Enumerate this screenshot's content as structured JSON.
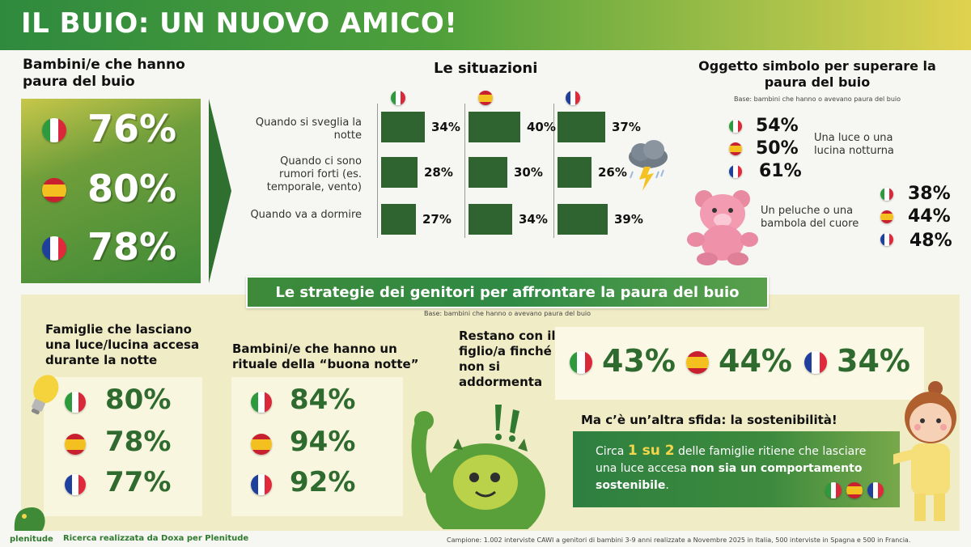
{
  "header": {
    "title": "IL BUIO: UN NUOVO AMICO!"
  },
  "fear": {
    "title": "Bambini/e che hanno paura del buio",
    "rows": [
      {
        "country": "Italia",
        "value": "76%"
      },
      {
        "country": "Spagna",
        "value": "80%"
      },
      {
        "country": "Francia",
        "value": "78%"
      }
    ]
  },
  "situations": {
    "title": "Le situazioni",
    "labels": [
      "Quando si sveglia la notte",
      "Quando ci sono rumori forti (es. temporale, vento)",
      "Quando va a dormire"
    ],
    "value_labels": {
      "it": [
        "34%",
        "28%",
        "27%"
      ],
      "es": [
        "40%",
        "30%",
        "34%"
      ],
      "fr": [
        "37%",
        "26%",
        "39%"
      ]
    }
  },
  "symbol": {
    "title": "Oggetto simbolo per superare la paura del buio",
    "base": "Base: bambini che hanno o avevano paura del buio",
    "light": {
      "label": "Una luce o una lucina notturna",
      "values": [
        "54%",
        "50%",
        "61%"
      ]
    },
    "plush": {
      "label": "Un peluche o una bambola del cuore",
      "values": [
        "38%",
        "44%",
        "48%"
      ]
    }
  },
  "strategies": {
    "banner": "Le strategie dei genitori per affrontare la paura del buio",
    "base": "Base: bambini che hanno o avevano paura del buio",
    "light_on": {
      "title": "Famiglie che lasciano una luce/lucina accesa durante la notte",
      "values": [
        "80%",
        "78%",
        "77%"
      ]
    },
    "ritual": {
      "title": "Bambini/e che hanno un rituale della “buona notte”",
      "values": [
        "84%",
        "94%",
        "92%"
      ]
    },
    "stay": {
      "title": "Restano con il figlio/a finché non si addormenta",
      "values": [
        "43%",
        "44%",
        "34%"
      ]
    }
  },
  "sustainability": {
    "title": "Ma c’è un’altra sfida: la sostenibilità!",
    "text_1": "Circa",
    "highlight": "1 su 2",
    "text_2": "delle famiglie ritiene che lasciare una luce accesa",
    "bold": "non sia un comportamento sostenibile",
    "end": "."
  },
  "footer": {
    "brand": "plenitude",
    "left": "Ricerca realizzata da Doxa per Plenitude",
    "right": "Campione: 1.002 interviste CAWI a genitori di bambini 3-9 anni realizzate a Novembre 2025 in Italia, 500 interviste in Spagna e 500 in Francia."
  },
  "colors": {
    "green_dark": "#2f6430",
    "green": "#3f8a37",
    "yellow": "#f3d64a"
  },
  "chart_data": {
    "type": "bar",
    "title": "Le situazioni",
    "categories": [
      "Quando si sveglia la notte",
      "Quando ci sono rumori forti (es. temporale, vento)",
      "Quando va a dormire"
    ],
    "series": [
      {
        "values": [
          34,
          28,
          27
        ]
      },
      {
        "values": [
          40,
          30,
          34
        ]
      },
      {
        "values": [
          37,
          26,
          39
        ]
      }
    ],
    "ylim": [
      0,
      50
    ],
    "grid": false,
    "legend": "top (flag icons)"
  }
}
